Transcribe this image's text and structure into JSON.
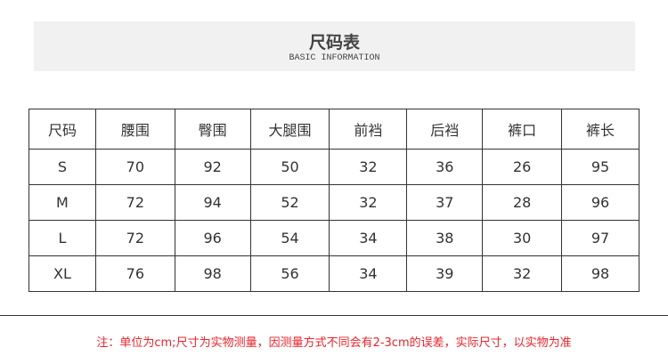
{
  "header": {
    "title": "尺码表",
    "subtitle": "BASIC INFORMATION"
  },
  "table": {
    "columns": [
      "尺码",
      "腰围",
      "臀围",
      "大腿围",
      "前裆",
      "后裆",
      "裤口",
      "裤长"
    ],
    "rows": [
      [
        "S",
        "70",
        "92",
        "50",
        "32",
        "36",
        "26",
        "95"
      ],
      [
        "M",
        "72",
        "94",
        "52",
        "32",
        "37",
        "28",
        "96"
      ],
      [
        "L",
        "72",
        "96",
        "54",
        "34",
        "38",
        "30",
        "97"
      ],
      [
        "XL",
        "76",
        "98",
        "56",
        "34",
        "39",
        "32",
        "98"
      ]
    ]
  },
  "note": "注：单位为cm;尺寸为实物测量，因测量方式不同会有2-3cm的误差，实际尺寸，以实物为准",
  "colors": {
    "note": "#e8242b",
    "banner": "#f1f1f1"
  }
}
